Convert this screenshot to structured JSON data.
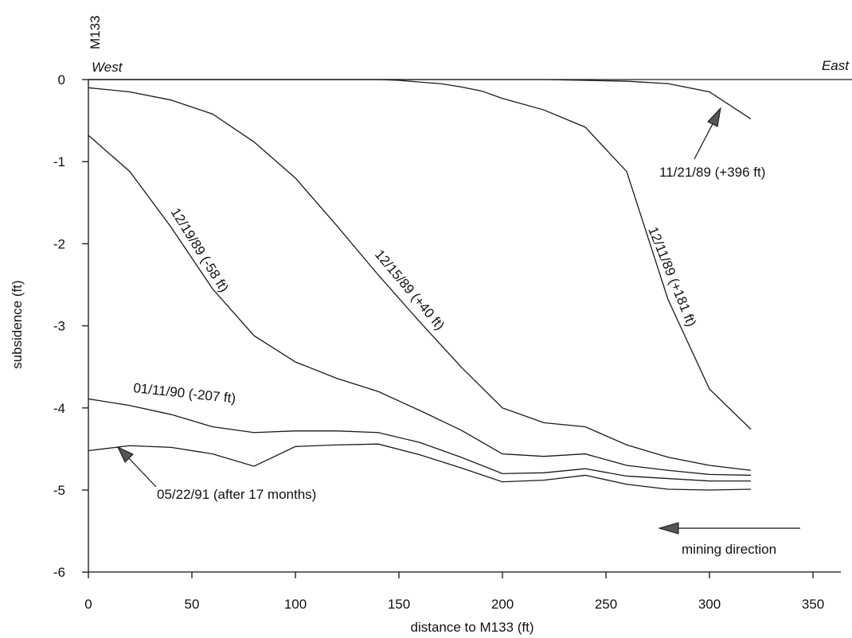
{
  "chart_data": {
    "type": "line",
    "title": "",
    "xlabel": "distance to M133 (ft)",
    "ylabel": "subsidence (ft)",
    "xlim": [
      0,
      350
    ],
    "ylim": [
      -6,
      0
    ],
    "xticks": [
      0,
      50,
      100,
      150,
      200,
      250,
      300,
      350
    ],
    "yticks": [
      0,
      -1,
      -2,
      -3,
      -4,
      -5,
      -6
    ],
    "xtick_labels": [
      "0",
      "50",
      "100",
      "150",
      "200",
      "250",
      "300",
      "350"
    ],
    "ytick_labels": [
      "0",
      "-1",
      "-2",
      "-3",
      "-4",
      "-5",
      "-6"
    ],
    "grid": false,
    "top_labels": {
      "station": "M133",
      "west": "West",
      "east": "East"
    },
    "x": [
      0,
      20,
      40,
      60,
      80,
      100,
      120,
      140,
      160,
      180,
      200,
      220,
      240,
      260,
      280,
      300,
      320
    ],
    "series": [
      {
        "name": "11/21/89 (+396 ft)",
        "values": [
          0,
          0,
          0,
          0,
          0,
          0,
          0,
          0,
          0,
          0,
          0,
          0,
          -0.01,
          -0.02,
          -0.05,
          -0.15,
          -0.48
        ]
      },
      {
        "name": "12/11/89 (+181 ft)",
        "values": [
          -0.1,
          -0.15,
          -0.25,
          -0.42,
          -0.76,
          -1.2,
          -1.78,
          -2.38,
          -2.95,
          -3.5,
          -4.0,
          -4.18,
          -4.23,
          -4.45,
          -4.6,
          -4.7,
          -4.76
        ]
      },
      {
        "name": "12/15/89 (+40 ft)",
        "values": [
          0,
          0,
          0,
          0,
          0,
          0,
          0,
          0,
          -0.01,
          -0.03,
          -0.05,
          -0.09,
          -0.14,
          -0.23,
          -0.37,
          -0.58,
          -1.12,
          -2.68,
          -3.77,
          -4.26
        ],
        "x": [
          0,
          20,
          40,
          60,
          80,
          100,
          120,
          140,
          150,
          160,
          170,
          180,
          190,
          200,
          220,
          240,
          260,
          280,
          300,
          320
        ]
      },
      {
        "name": "12/19/89 (-58 ft)",
        "values": [
          -0.68,
          -1.12,
          -1.8,
          -2.55,
          -3.12,
          -3.44,
          -3.64,
          -3.8,
          -4.03,
          -4.27,
          -4.56,
          -4.59,
          -4.56,
          -4.7,
          -4.76,
          -4.81,
          -4.82
        ]
      },
      {
        "name": "01/11/90 (-207 ft)",
        "values": [
          -3.89,
          -3.97,
          -4.08,
          -4.23,
          -4.3,
          -4.28,
          -4.28,
          -4.3,
          -4.42,
          -4.6,
          -4.8,
          -4.79,
          -4.74,
          -4.83,
          -4.86,
          -4.89,
          -4.89
        ]
      },
      {
        "name": "05/22/91 (after 17 months)",
        "values": [
          -4.52,
          -4.46,
          -4.48,
          -4.56,
          -4.71,
          -4.47,
          -4.45,
          -4.44,
          -4.57,
          -4.73,
          -4.9,
          -4.88,
          -4.82,
          -4.93,
          -4.99,
          -5.0,
          -4.99
        ]
      }
    ],
    "annotations": [
      {
        "text": "11/21/89 (+396 ft)",
        "arrow": true
      },
      {
        "text": "12/11/89 (+181 ft)"
      },
      {
        "text": "12/15/89 (+40 ft)"
      },
      {
        "text": "12/19/89 (-58 ft)"
      },
      {
        "text": "01/11/90 (-207 ft)"
      },
      {
        "text": "05/22/91 (after 17 months)",
        "arrow": true
      },
      {
        "text": "mining direction",
        "arrow": true
      }
    ]
  }
}
